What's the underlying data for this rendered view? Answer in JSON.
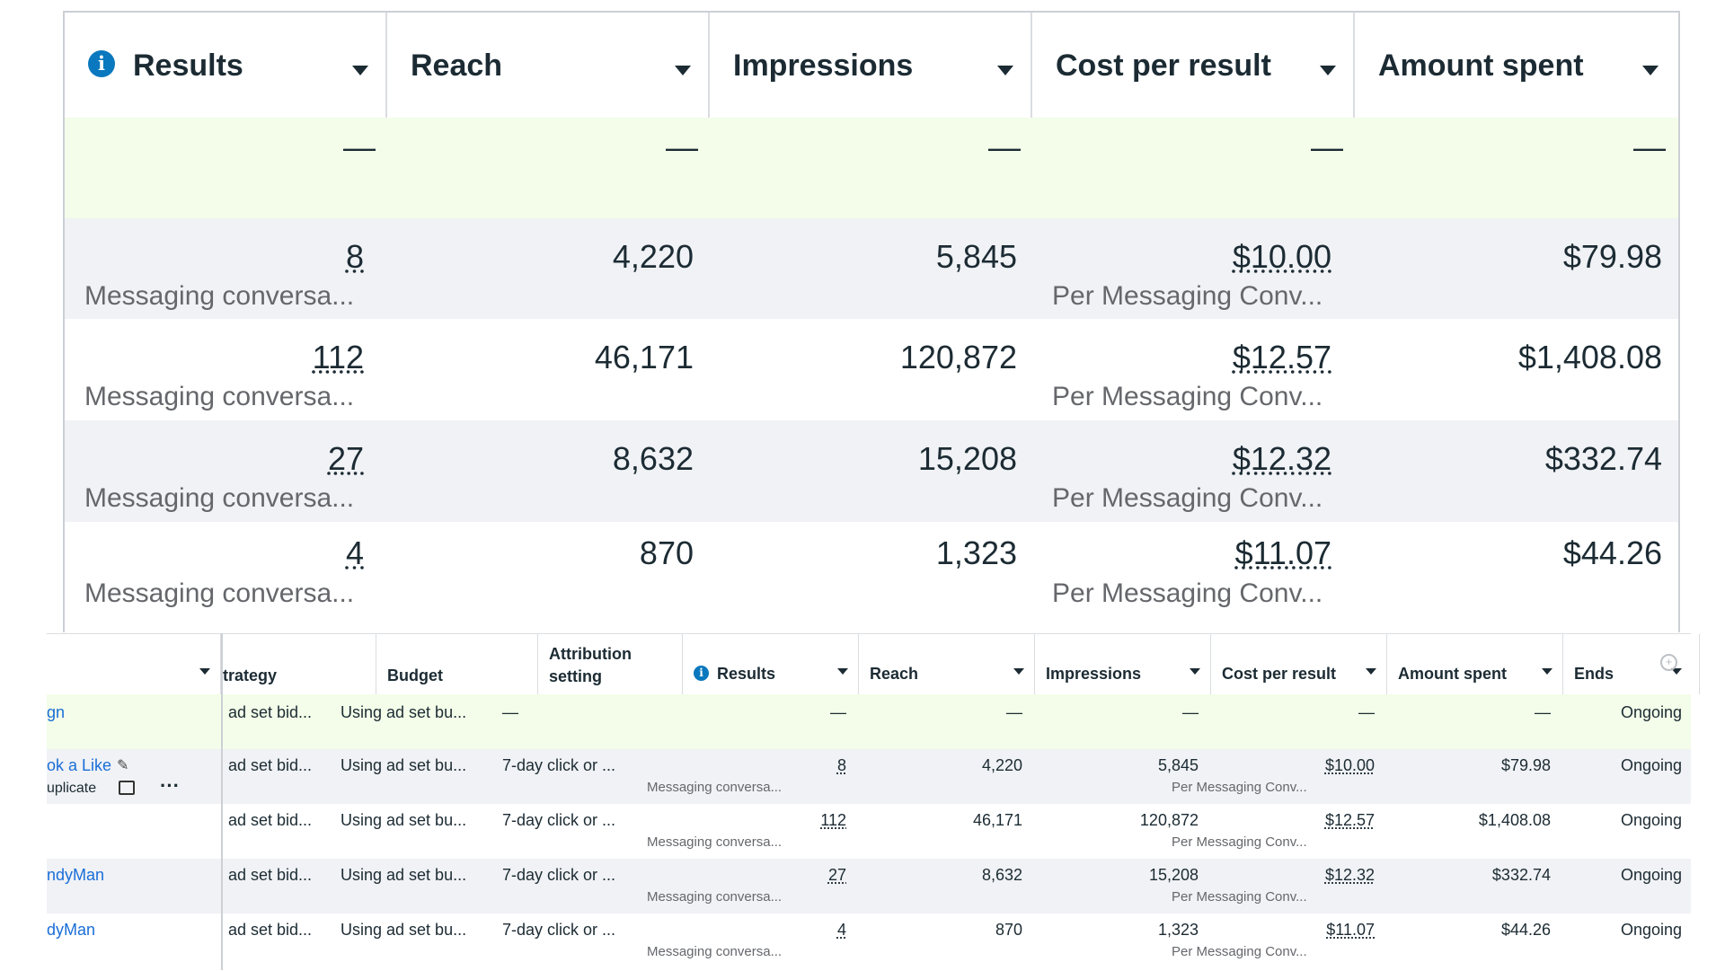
{
  "bottom_table": {
    "headers": {
      "col0": "",
      "bid_strategy": "trategy",
      "budget": "Budget",
      "attribution": [
        "Attribution",
        "setting"
      ],
      "results": "Results",
      "reach": "Reach",
      "impressions": "Impressions",
      "cost_per_result": "Cost per result",
      "amount_spent": "Amount spent",
      "ends": "Ends"
    },
    "rows": [
      {
        "name": "gn",
        "bid": "ad set bid...",
        "budget": "Using ad set bu...",
        "attribution": "—",
        "results": "—",
        "results_sub": "",
        "reach": "—",
        "impressions": "—",
        "cpr": "—",
        "cpr_sub": "",
        "spent": "—",
        "ends": "Ongoing"
      },
      {
        "name": "ok a Like",
        "name_sub": "uplicate",
        "bid": "ad set bid...",
        "budget": "Using ad set bu...",
        "attribution": "7-day click or ...",
        "results": "8",
        "results_sub": "Messaging conversa...",
        "reach": "4,220",
        "impressions": "5,845",
        "cpr": "$10.00",
        "cpr_sub": "Per Messaging Conv...",
        "spent": "$79.98",
        "ends": "Ongoing"
      },
      {
        "name": "",
        "bid": "ad set bid...",
        "budget": "Using ad set bu...",
        "attribution": "7-day click or ...",
        "results": "112",
        "results_sub": "Messaging conversa...",
        "reach": "46,171",
        "impressions": "120,872",
        "cpr": "$12.57",
        "cpr_sub": "Per Messaging Conv...",
        "spent": "$1,408.08",
        "ends": "Ongoing"
      },
      {
        "name": "ndyMan",
        "bid": "ad set bid...",
        "budget": "Using ad set bu...",
        "attribution": "7-day click or ...",
        "results": "27",
        "results_sub": "Messaging conversa...",
        "reach": "8,632",
        "impressions": "15,208",
        "cpr": "$12.32",
        "cpr_sub": "Per Messaging Conv...",
        "spent": "$332.74",
        "ends": "Ongoing"
      },
      {
        "name": "dyMan",
        "bid": "ad set bid...",
        "budget": "Using ad set bu...",
        "attribution": "7-day click or ...",
        "results": "4",
        "results_sub": "Messaging conversa...",
        "reach": "870",
        "impressions": "1,323",
        "cpr": "$11.07",
        "cpr_sub": "Per Messaging Conv...",
        "spent": "$44.26",
        "ends": "Ongoing"
      }
    ],
    "icons": {
      "info": "info-icon",
      "pencil": "pencil-icon",
      "image": "image-icon",
      "more": "more-icon",
      "add_column": "add-column-icon"
    },
    "more_glyph": "···"
  },
  "zoom_table": {
    "headers": {
      "results": "Results",
      "reach": "Reach",
      "impressions": "Impressions",
      "cost_per_result": "Cost per result",
      "amount_spent": "Amount spent"
    },
    "rows": [
      {
        "results": "—",
        "results_sub": "",
        "reach": "—",
        "impressions": "—",
        "cpr": "—",
        "cpr_sub": "",
        "spent": "—"
      },
      {
        "results": "8",
        "results_sub": "Messaging conversa...",
        "reach": "4,220",
        "impressions": "5,845",
        "cpr": "$10.00",
        "cpr_sub": "Per Messaging Conv...",
        "spent": "$79.98"
      },
      {
        "results": "112",
        "results_sub": "Messaging conversa...",
        "reach": "46,171",
        "impressions": "120,872",
        "cpr": "$12.57",
        "cpr_sub": "Per Messaging Conv...",
        "spent": "$1,408.08"
      },
      {
        "results": "27",
        "results_sub": "Messaging conversa...",
        "reach": "8,632",
        "impressions": "15,208",
        "cpr": "$12.32",
        "cpr_sub": "Per Messaging Conv...",
        "spent": "$332.74"
      },
      {
        "results": "4",
        "results_sub": "Messaging conversa...",
        "reach": "870",
        "impressions": "1,323",
        "cpr": "$11.07",
        "cpr_sub": "Per Messaging Conv...",
        "spent": "$44.26"
      }
    ]
  },
  "colors": {
    "link": "#1a6ed8",
    "info": "#0a78be",
    "summary_row": "#f3fde9",
    "alt_row": "#f0f2f5"
  }
}
